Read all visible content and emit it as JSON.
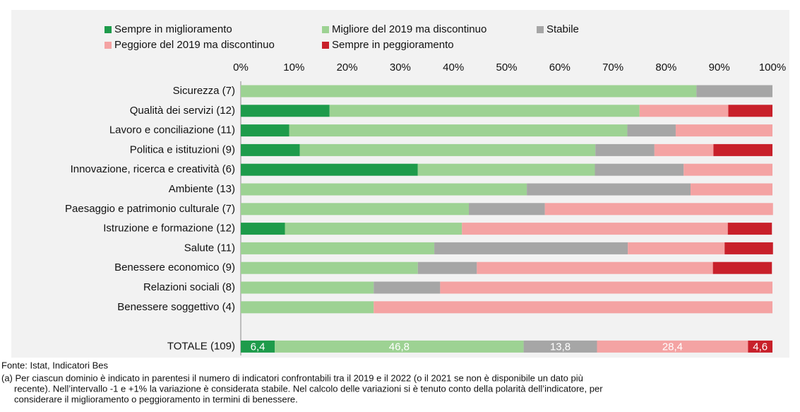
{
  "chart_data": {
    "type": "stacked_barh",
    "categories": [
      "Sicurezza (7)",
      "Qualità dei servizi (12)",
      "Lavoro e conciliazione (11)",
      "Politica e istituzioni (9)",
      "Innovazione, ricerca e creatività (6)",
      "Ambiente (13)",
      "Paesaggio e patrimonio culturale (7)",
      "Istruzione e formazione (12)",
      "Salute (11)",
      "Benessere economico (9)",
      "Relazioni sociali (8)",
      "Benessere soggettivo (4)",
      null,
      "TOTALE (109)"
    ],
    "series": [
      {
        "name": "Sempre in miglioramento",
        "color": "#1e9b4b",
        "values": [
          0,
          16.7,
          9.1,
          11.1,
          33.3,
          0,
          0,
          8.3,
          0,
          0,
          0,
          0,
          null,
          6.4
        ],
        "value_labels": [
          null,
          null,
          null,
          null,
          null,
          null,
          null,
          null,
          null,
          null,
          null,
          null,
          null,
          "6,4"
        ]
      },
      {
        "name": "Migliore del 2019 ma discontinuo",
        "color": "#9dd293",
        "values": [
          85.7,
          58.3,
          63.6,
          55.6,
          33.3,
          53.8,
          42.9,
          33.3,
          36.4,
          33.3,
          25,
          25,
          null,
          46.8
        ],
        "value_labels": [
          null,
          null,
          null,
          null,
          null,
          null,
          null,
          null,
          null,
          null,
          null,
          null,
          null,
          "46,8"
        ]
      },
      {
        "name": "Stabile",
        "color": "#a6a6a6",
        "values": [
          14.3,
          0,
          9.1,
          11.1,
          16.7,
          30.8,
          14.3,
          0,
          36.4,
          11.1,
          12.5,
          0,
          null,
          13.8
        ],
        "value_labels": [
          null,
          null,
          null,
          null,
          null,
          null,
          null,
          null,
          null,
          null,
          null,
          null,
          null,
          "13,8"
        ]
      },
      {
        "name": "Peggiore del 2019 ma discontinuo",
        "color": "#f4a3a3",
        "values": [
          0,
          16.7,
          18.2,
          11.1,
          16.7,
          15.4,
          42.9,
          50,
          18.2,
          44.4,
          62.5,
          75,
          null,
          28.4
        ],
        "value_labels": [
          null,
          null,
          null,
          null,
          null,
          null,
          null,
          null,
          null,
          null,
          null,
          null,
          null,
          "28,4"
        ]
      },
      {
        "name": "Sempre in peggioramento",
        "color": "#c8202a",
        "values": [
          0,
          8.3,
          0,
          11.1,
          0,
          0,
          0,
          8.3,
          9.1,
          11.1,
          0,
          0,
          null,
          4.6
        ],
        "value_labels": [
          null,
          null,
          null,
          null,
          null,
          null,
          null,
          null,
          null,
          null,
          null,
          null,
          null,
          "4,6"
        ]
      }
    ],
    "xlim": [
      0,
      100
    ],
    "xticks": [
      {
        "value": 0,
        "label": "0%"
      },
      {
        "value": 10,
        "label": "10%"
      },
      {
        "value": 20,
        "label": "20%"
      },
      {
        "value": 30,
        "label": "30%"
      },
      {
        "value": 40,
        "label": "40%"
      },
      {
        "value": 50,
        "label": "50%"
      },
      {
        "value": 60,
        "label": "60%"
      },
      {
        "value": 70,
        "label": "70%"
      },
      {
        "value": 80,
        "label": "80%"
      },
      {
        "value": 90,
        "label": "90%"
      },
      {
        "value": 100,
        "label": "100%"
      }
    ],
    "grid": false,
    "source": "Fonte: Istat, Indicatori Bes",
    "note": [
      "(a) Per ciascun dominio è indicato in parentesi il numero di indicatori confrontabili tra il 2019 e il 2022 (o il 2021 se non è disponibile un dato più",
      "recente). Nell’intervallo -1 e +1% la variazione è considerata stabile. Nel calcolo delle variazioni si è tenuto conto della polarità dell’indicatore, per",
      "considerare il miglioramento o peggioramento in termini di benessere."
    ]
  }
}
